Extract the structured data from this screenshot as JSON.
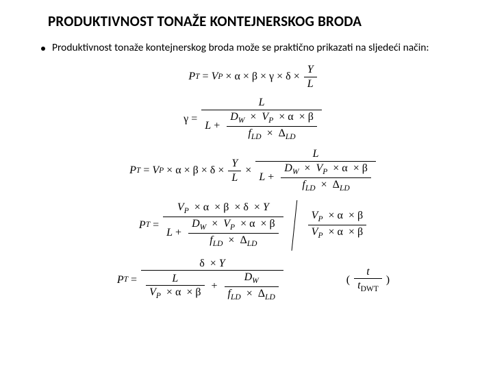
{
  "title": "PRODUKTIVNOST TONAŽE KONTEJNERSKOG BRODA",
  "intro": "Produktivnost tonaže kontejnerskog broda može se praktično prikazati na sljedeći način:",
  "sym": {
    "PT_lhs": "P",
    "PT_sub": "T",
    "VP": "V",
    "VP_sub": "P",
    "alpha": "α",
    "beta": "β",
    "gamma": "γ",
    "delta": "δ",
    "Y": "Y",
    "L": "L",
    "DW": "D",
    "DW_sub": "W",
    "f": "f",
    "LD": "LD",
    "Delta": "Δ",
    "t": "t",
    "tDWT": "DWT"
  },
  "style": {
    "bg": "#ffffff",
    "text": "#000000",
    "title_fontsize": 21,
    "body_fontsize": 15.5,
    "math_fontsize": 16,
    "title_weight": 700
  }
}
